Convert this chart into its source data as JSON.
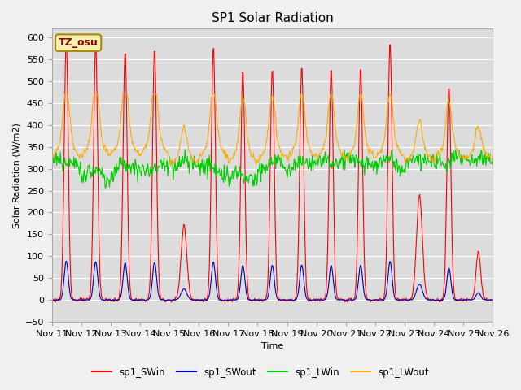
{
  "title": "SP1 Solar Radiation",
  "ylabel": "Solar Radiation (W/m2)",
  "xlabel": "Time",
  "ylim": [
    -50,
    620
  ],
  "line_colors": {
    "SWin": "#ff0000",
    "SWout": "#0000bb",
    "LWin": "#00cc00",
    "LWout": "#ffaa00"
  },
  "legend_labels": [
    "sp1_SWin",
    "sp1_SWout",
    "sp1_LWin",
    "sp1_LWout"
  ],
  "xtick_labels": [
    "Nov 11",
    "Nov 12",
    "Nov 13",
    "Nov 14",
    "Nov 15",
    "Nov 16",
    "Nov 17",
    "Nov 18",
    "Nov 19",
    "Nov 20",
    "Nov 21",
    "Nov 22",
    "Nov 23",
    "Nov 24",
    "Nov 25",
    "Nov 26"
  ],
  "sw_in_peaks": [
    595,
    585,
    570,
    575,
    170,
    580,
    525,
    530,
    535,
    530,
    530,
    590,
    240,
    490,
    110,
    0
  ],
  "sw_peak_widths": [
    0.07,
    0.07,
    0.07,
    0.07,
    0.1,
    0.07,
    0.07,
    0.07,
    0.07,
    0.07,
    0.07,
    0.07,
    0.1,
    0.07,
    0.08,
    0.07
  ],
  "lw_out_base": [
    320,
    325,
    325,
    325,
    310,
    320,
    310,
    315,
    320,
    320,
    320,
    320,
    315,
    320,
    320,
    320
  ],
  "lw_out_peak_boost": [
    120,
    125,
    130,
    130,
    60,
    120,
    110,
    110,
    110,
    110,
    110,
    110,
    70,
    95,
    55,
    10
  ],
  "lw_in_base": [
    305,
    280,
    295,
    295,
    310,
    295,
    275,
    300,
    305,
    310,
    310,
    305,
    310,
    310,
    315,
    310
  ],
  "fig_bg": "#f0f0f0",
  "plot_bg": "#dcdcdc",
  "grid_color": "#ffffff",
  "yticks": [
    -50,
    0,
    50,
    100,
    150,
    200,
    250,
    300,
    350,
    400,
    450,
    500,
    550,
    600
  ]
}
